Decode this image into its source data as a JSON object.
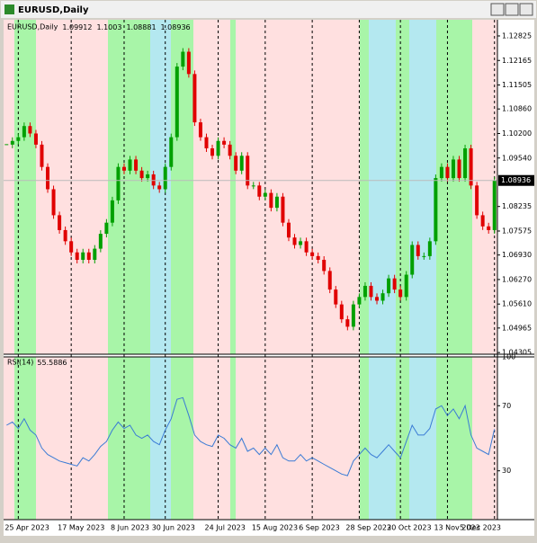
{
  "window": {
    "title": "EURUSD,Daily"
  },
  "chart_data": [
    {
      "type": "candlestick",
      "title": "EURUSD,Daily",
      "last_bar": [
        1.09912,
        1.1003,
        1.08881,
        1.08936
      ],
      "x_labels": [
        {
          "value": 2,
          "label": "25 Apr 2023"
        },
        {
          "value": 11,
          "label": "17 May 2023"
        },
        {
          "value": 20,
          "label": "8 Jun 2023"
        },
        {
          "value": 27,
          "label": "30 Jun 2023"
        },
        {
          "value": 36,
          "label": "24 Jul 2023"
        },
        {
          "value": 44,
          "label": "15 Aug 2023"
        },
        {
          "value": 52,
          "label": "6 Sep 2023"
        },
        {
          "value": 60,
          "label": "28 Sep 2023"
        },
        {
          "value": 67,
          "label": "20 Oct 2023"
        },
        {
          "value": 75,
          "label": "13 Nov 2023"
        },
        {
          "value": 83,
          "label": "5 Dec 2023"
        }
      ],
      "close": [
        1.099,
        1.1,
        1.101,
        1.104,
        1.102,
        1.099,
        1.093,
        1.087,
        1.08,
        1.076,
        1.073,
        1.07,
        1.068,
        1.07,
        1.068,
        1.071,
        1.075,
        1.078,
        1.084,
        1.093,
        1.092,
        1.095,
        1.092,
        1.09,
        1.091,
        1.088,
        1.087,
        1.093,
        1.101,
        1.12,
        1.124,
        1.118,
        1.105,
        1.101,
        1.098,
        1.096,
        1.1,
        1.099,
        1.096,
        1.092,
        1.096,
        1.088,
        1.088,
        1.085,
        1.086,
        1.082,
        1.085,
        1.078,
        1.074,
        1.072,
        1.073,
        1.07,
        1.069,
        1.068,
        1.065,
        1.06,
        1.056,
        1.052,
        1.05,
        1.056,
        1.058,
        1.061,
        1.058,
        1.057,
        1.059,
        1.063,
        1.06,
        1.058,
        1.064,
        1.072,
        1.069,
        1.069,
        1.073,
        1.09,
        1.093,
        1.09,
        1.095,
        1.09,
        1.098,
        1.088,
        1.08,
        1.077,
        1.076,
        1.08936
      ],
      "up_color": "#00a000",
      "down_color": "#e00000",
      "ylim": [
        1.0426,
        1.1326
      ],
      "yticks": [
        {
          "value": 1.12825,
          "label": "1.12825"
        },
        {
          "value": 1.12165,
          "label": "1.12165"
        },
        {
          "value": 1.11505,
          "label": "1.11505"
        },
        {
          "value": 1.1086,
          "label": "1.10860"
        },
        {
          "value": 1.102,
          "label": "1.10200"
        },
        {
          "value": 1.0954,
          "label": "1.09540"
        },
        {
          "value": 1.08235,
          "label": "1.08235"
        },
        {
          "value": 1.07575,
          "label": "1.07575"
        },
        {
          "value": 1.0693,
          "label": "1.06930"
        },
        {
          "value": 1.0627,
          "label": "1.06270"
        },
        {
          "value": 1.0561,
          "label": "1.05610"
        },
        {
          "value": 1.04965,
          "label": "1.04965"
        },
        {
          "value": 1.04305,
          "label": "1.04305"
        }
      ]
    },
    {
      "type": "line",
      "title": "RSI(14)",
      "color": "#3a7bd5",
      "ylim": [
        0,
        100
      ],
      "yticks": [
        100,
        70,
        30
      ],
      "values": [
        58,
        60,
        56,
        62,
        55,
        52,
        44,
        40,
        38,
        36,
        35,
        34,
        33,
        38,
        36,
        40,
        45,
        48,
        55,
        60,
        56,
        58,
        52,
        50,
        52,
        48,
        46,
        55,
        62,
        74,
        75,
        64,
        52,
        48,
        46,
        45,
        52,
        50,
        46,
        44,
        50,
        42,
        44,
        40,
        44,
        40,
        46,
        38,
        36,
        36,
        40,
        36,
        38,
        36,
        34,
        32,
        30,
        28,
        27,
        36,
        40,
        44,
        40,
        38,
        42,
        46,
        42,
        38,
        48,
        58,
        52,
        52,
        56,
        68,
        70,
        64,
        68,
        62,
        70,
        52,
        44,
        42,
        40,
        55.5886
      ]
    }
  ]
}
